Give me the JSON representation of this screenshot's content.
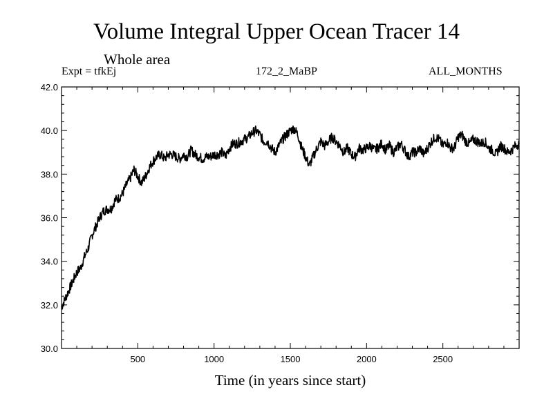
{
  "header": {
    "title": "Volume Integral Upper Ocean Tracer 14",
    "subtitle": "Whole area",
    "expt": "Expt = tfkEj",
    "run": "172_2_MaBP",
    "months": "ALL_MONTHS"
  },
  "chart_data": {
    "type": "line",
    "title": "Volume Integral Upper Ocean Tracer 14",
    "subtitle": "Whole area",
    "xlabel": "Time (in years since start)",
    "ylabel": "",
    "xlim": [
      0,
      3000
    ],
    "ylim": [
      30.0,
      42.0
    ],
    "x_ticks": [
      500,
      1000,
      1500,
      2000,
      2500
    ],
    "x_tick_labels": [
      "500",
      "1000",
      "1500",
      "2000",
      "2500"
    ],
    "y_ticks": [
      30,
      32,
      34,
      36,
      38,
      40,
      42
    ],
    "y_tick_labels": [
      "30.0",
      "32.0",
      "34.0",
      "36.0",
      "38.0",
      "40.0",
      "42.0"
    ],
    "grid": false,
    "legend": "none",
    "line_color": "#000000",
    "series": [
      {
        "x": [
          0,
          25,
          50,
          75,
          100,
          125,
          150,
          175,
          200,
          225,
          250,
          275,
          300,
          325,
          350,
          375,
          400,
          425,
          450,
          475,
          500,
          525,
          550,
          575,
          600,
          625,
          650,
          675,
          700,
          725,
          750,
          775,
          800,
          825,
          850,
          875,
          900,
          925,
          950,
          975,
          1000,
          1025,
          1050,
          1075,
          1100,
          1125,
          1150,
          1175,
          1200,
          1225,
          1250,
          1275,
          1300,
          1325,
          1350,
          1375,
          1400,
          1425,
          1450,
          1475,
          1500,
          1525,
          1550,
          1575,
          1600,
          1625,
          1650,
          1675,
          1700,
          1725,
          1750,
          1775,
          1800,
          1825,
          1850,
          1875,
          1900,
          1925,
          1950,
          1975,
          2000,
          2025,
          2050,
          2075,
          2100,
          2125,
          2150,
          2175,
          2200,
          2225,
          2250,
          2275,
          2300,
          2325,
          2350,
          2375,
          2400,
          2425,
          2450,
          2475,
          2500,
          2525,
          2550,
          2575,
          2600,
          2625,
          2650,
          2675,
          2700,
          2725,
          2750,
          2775,
          2800,
          2825,
          2850,
          2875,
          2900,
          2925,
          2950,
          2975,
          3000
        ],
        "values": [
          31.9,
          32.3,
          32.7,
          33.1,
          33.5,
          33.7,
          34.2,
          34.6,
          35.2,
          35.6,
          36.0,
          36.3,
          36.4,
          36.4,
          36.8,
          36.9,
          37.1,
          37.5,
          37.8,
          38.2,
          37.9,
          37.6,
          37.9,
          38.3,
          38.6,
          38.8,
          38.9,
          38.7,
          38.9,
          38.9,
          38.8,
          38.7,
          38.9,
          38.8,
          39.1,
          38.9,
          38.8,
          38.7,
          38.8,
          38.8,
          38.9,
          38.9,
          39.0,
          38.8,
          39.2,
          39.4,
          39.4,
          39.5,
          39.6,
          39.7,
          39.9,
          40.0,
          39.8,
          39.5,
          39.5,
          39.2,
          39.0,
          39.3,
          39.6,
          39.8,
          40.0,
          40.1,
          39.8,
          39.2,
          38.8,
          38.4,
          38.8,
          39.2,
          39.5,
          39.3,
          39.5,
          39.7,
          39.5,
          39.3,
          39.0,
          39.2,
          38.9,
          38.8,
          39.2,
          39.1,
          39.2,
          39.3,
          39.1,
          39.2,
          39.4,
          39.1,
          39.3,
          39.0,
          39.2,
          39.4,
          39.1,
          38.8,
          39.0,
          39.0,
          39.2,
          38.9,
          39.2,
          39.5,
          39.7,
          39.6,
          39.3,
          39.5,
          39.2,
          39.2,
          39.7,
          39.8,
          39.5,
          39.4,
          39.6,
          39.5,
          39.4,
          39.5,
          39.2,
          39.1,
          38.9,
          39.3,
          39.2,
          39.0,
          39.1,
          39.3,
          39.4
        ]
      }
    ]
  }
}
